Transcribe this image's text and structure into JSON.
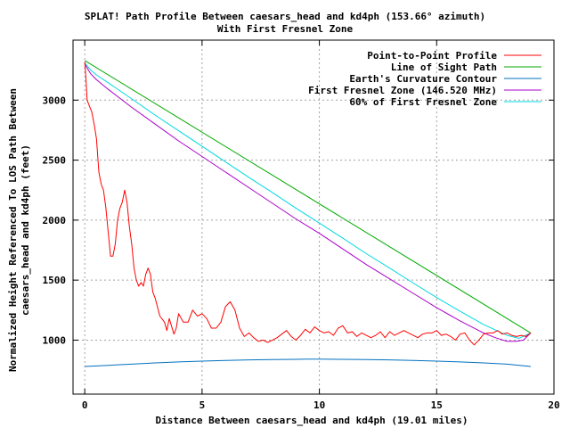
{
  "chart_data": {
    "type": "line",
    "title": "SPLAT! Path Profile Between caesars_head and kd4ph (153.66° azimuth)",
    "subtitle": "With First Fresnel Zone",
    "xlabel": "Distance Between caesars_head and kd4ph (19.01 miles)",
    "ylabel_lines": [
      "Normalized Height Referenced To LOS Path Between",
      "caesars_head and kd4ph (feet)"
    ],
    "xlim": [
      -0.5,
      20
    ],
    "ylim": [
      550,
      3500
    ],
    "x_ticks": [
      0,
      5,
      10,
      15,
      20
    ],
    "y_ticks": [
      1000,
      1500,
      2000,
      2500,
      3000
    ],
    "grid": true,
    "legend_position": "top-right",
    "colors": {
      "profile": "#ff0000",
      "los": "#00aa00",
      "earth": "#0070c0",
      "fresnel": "#aa00cc",
      "fresnel60": "#00d8e0",
      "grid": "#a0a0a0",
      "axis": "#000000"
    },
    "series": [
      {
        "key": "profile",
        "name": "Point-to-Point Profile",
        "points": [
          [
            0,
            3320
          ],
          [
            0.05,
            3180
          ],
          [
            0.1,
            3000
          ],
          [
            0.2,
            2950
          ],
          [
            0.3,
            2900
          ],
          [
            0.4,
            2800
          ],
          [
            0.5,
            2680
          ],
          [
            0.6,
            2400
          ],
          [
            0.7,
            2300
          ],
          [
            0.8,
            2250
          ],
          [
            0.9,
            2100
          ],
          [
            1.0,
            1900
          ],
          [
            1.1,
            1700
          ],
          [
            1.2,
            1700
          ],
          [
            1.3,
            1800
          ],
          [
            1.4,
            2000
          ],
          [
            1.5,
            2100
          ],
          [
            1.6,
            2150
          ],
          [
            1.7,
            2250
          ],
          [
            1.8,
            2150
          ],
          [
            1.9,
            1950
          ],
          [
            2.0,
            1800
          ],
          [
            2.1,
            1600
          ],
          [
            2.2,
            1500
          ],
          [
            2.3,
            1450
          ],
          [
            2.4,
            1480
          ],
          [
            2.5,
            1450
          ],
          [
            2.6,
            1550
          ],
          [
            2.7,
            1600
          ],
          [
            2.8,
            1550
          ],
          [
            2.9,
            1400
          ],
          [
            3.0,
            1350
          ],
          [
            3.2,
            1200
          ],
          [
            3.4,
            1150
          ],
          [
            3.5,
            1080
          ],
          [
            3.6,
            1180
          ],
          [
            3.8,
            1050
          ],
          [
            3.9,
            1100
          ],
          [
            4.0,
            1220
          ],
          [
            4.2,
            1150
          ],
          [
            4.4,
            1150
          ],
          [
            4.6,
            1250
          ],
          [
            4.8,
            1200
          ],
          [
            5.0,
            1220
          ],
          [
            5.2,
            1180
          ],
          [
            5.4,
            1100
          ],
          [
            5.6,
            1100
          ],
          [
            5.8,
            1150
          ],
          [
            6.0,
            1280
          ],
          [
            6.2,
            1320
          ],
          [
            6.4,
            1250
          ],
          [
            6.6,
            1100
          ],
          [
            6.8,
            1030
          ],
          [
            7.0,
            1060
          ],
          [
            7.2,
            1020
          ],
          [
            7.4,
            990
          ],
          [
            7.6,
            1000
          ],
          [
            7.8,
            980
          ],
          [
            8.0,
            1000
          ],
          [
            8.2,
            1020
          ],
          [
            8.4,
            1050
          ],
          [
            8.6,
            1080
          ],
          [
            8.8,
            1030
          ],
          [
            9.0,
            1000
          ],
          [
            9.2,
            1040
          ],
          [
            9.4,
            1090
          ],
          [
            9.6,
            1060
          ],
          [
            9.8,
            1110
          ],
          [
            10.0,
            1080
          ],
          [
            10.2,
            1060
          ],
          [
            10.4,
            1070
          ],
          [
            10.6,
            1040
          ],
          [
            10.8,
            1100
          ],
          [
            11.0,
            1120
          ],
          [
            11.2,
            1060
          ],
          [
            11.4,
            1070
          ],
          [
            11.6,
            1030
          ],
          [
            11.8,
            1060
          ],
          [
            12.0,
            1040
          ],
          [
            12.2,
            1020
          ],
          [
            12.4,
            1040
          ],
          [
            12.6,
            1070
          ],
          [
            12.8,
            1020
          ],
          [
            13.0,
            1070
          ],
          [
            13.2,
            1040
          ],
          [
            13.4,
            1060
          ],
          [
            13.6,
            1080
          ],
          [
            13.8,
            1060
          ],
          [
            14.0,
            1040
          ],
          [
            14.2,
            1020
          ],
          [
            14.4,
            1050
          ],
          [
            14.6,
            1060
          ],
          [
            14.8,
            1060
          ],
          [
            15.0,
            1080
          ],
          [
            15.2,
            1040
          ],
          [
            15.4,
            1050
          ],
          [
            15.6,
            1030
          ],
          [
            15.8,
            1000
          ],
          [
            16.0,
            1050
          ],
          [
            16.2,
            1060
          ],
          [
            16.4,
            1000
          ],
          [
            16.6,
            960
          ],
          [
            16.8,
            1000
          ],
          [
            17.0,
            1050
          ],
          [
            17.2,
            1060
          ],
          [
            17.4,
            1060
          ],
          [
            17.6,
            1080
          ],
          [
            17.8,
            1050
          ],
          [
            18.0,
            1060
          ],
          [
            18.2,
            1040
          ],
          [
            18.4,
            1030
          ],
          [
            18.6,
            1040
          ],
          [
            18.8,
            1030
          ],
          [
            19.01,
            1060
          ]
        ]
      },
      {
        "key": "los",
        "name": "Line of Sight Path",
        "points": [
          [
            0,
            3330
          ],
          [
            19.01,
            1060
          ]
        ]
      },
      {
        "key": "earth",
        "name": "Earth's Curvature Contour",
        "points": [
          [
            0,
            780
          ],
          [
            1,
            790
          ],
          [
            2,
            800
          ],
          [
            3,
            810
          ],
          [
            4,
            818
          ],
          [
            5,
            825
          ],
          [
            6,
            830
          ],
          [
            7,
            835
          ],
          [
            8,
            838
          ],
          [
            9,
            840
          ],
          [
            9.5,
            841
          ],
          [
            10,
            841
          ],
          [
            11,
            840
          ],
          [
            12,
            838
          ],
          [
            13,
            835
          ],
          [
            14,
            830
          ],
          [
            15,
            825
          ],
          [
            16,
            818
          ],
          [
            17,
            810
          ],
          [
            18,
            800
          ],
          [
            19.01,
            780
          ]
        ]
      },
      {
        "key": "fresnel",
        "name": "First Fresnel Zone (146.520 MHz)",
        "points": [
          [
            0,
            3300
          ],
          [
            0.25,
            3220
          ],
          [
            0.5,
            3170
          ],
          [
            1,
            3090
          ],
          [
            2,
            2940
          ],
          [
            3,
            2800
          ],
          [
            4,
            2660
          ],
          [
            5,
            2530
          ],
          [
            6,
            2400
          ],
          [
            7,
            2270
          ],
          [
            8,
            2140
          ],
          [
            9,
            2010
          ],
          [
            10,
            1890
          ],
          [
            11,
            1760
          ],
          [
            12,
            1630
          ],
          [
            13,
            1510
          ],
          [
            14,
            1390
          ],
          [
            15,
            1270
          ],
          [
            16,
            1160
          ],
          [
            17,
            1060
          ],
          [
            17.5,
            1020
          ],
          [
            18,
            990
          ],
          [
            18.4,
            990
          ],
          [
            18.7,
            1000
          ],
          [
            19.01,
            1060
          ]
        ]
      },
      {
        "key": "fresnel60",
        "name": "60% of First Fresnel Zone",
        "points": [
          [
            0,
            3310
          ],
          [
            0.25,
            3250
          ],
          [
            0.5,
            3210
          ],
          [
            1,
            3145
          ],
          [
            2,
            3010
          ],
          [
            3,
            2875
          ],
          [
            4,
            2745
          ],
          [
            5,
            2615
          ],
          [
            6,
            2485
          ],
          [
            7,
            2355
          ],
          [
            8,
            2230
          ],
          [
            9,
            2100
          ],
          [
            10,
            1975
          ],
          [
            11,
            1850
          ],
          [
            12,
            1720
          ],
          [
            13,
            1600
          ],
          [
            14,
            1475
          ],
          [
            15,
            1355
          ],
          [
            16,
            1240
          ],
          [
            17,
            1130
          ],
          [
            18,
            1040
          ],
          [
            18.5,
            1015
          ],
          [
            19.01,
            1060
          ]
        ]
      }
    ]
  }
}
